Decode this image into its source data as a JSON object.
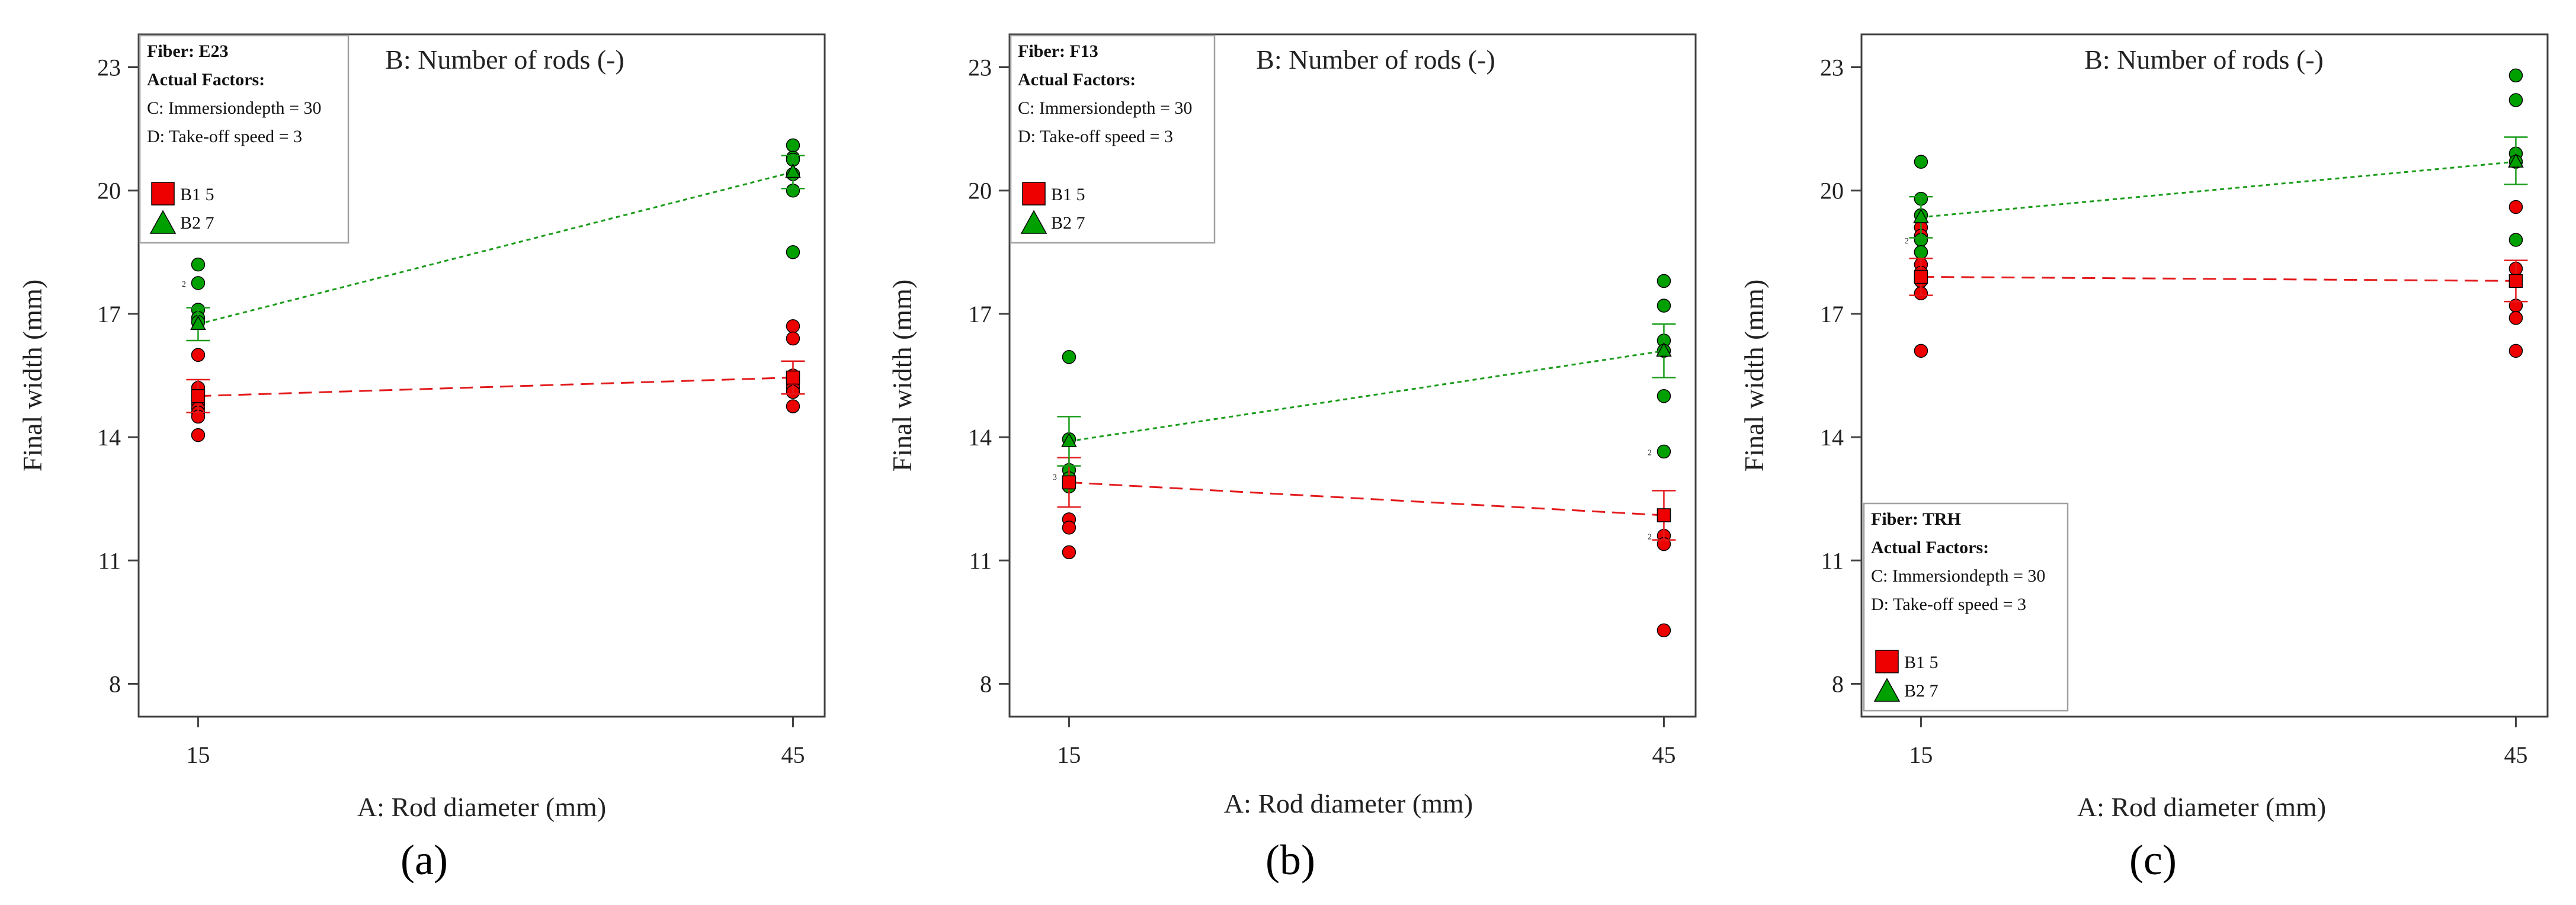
{
  "colors": {
    "b1": "#e31a1c",
    "b2": "#1a9c1a",
    "b1_marker": "#ee0000",
    "b2_marker": "#00a000"
  },
  "chart_data": [
    {
      "type": "scatter",
      "panel_label": "(a)",
      "title": "B: Number of rods (-)",
      "xlabel": "A: Rod diameter (mm)",
      "ylabel": "Final width (mm)",
      "x_ticks": [
        15,
        45
      ],
      "y_ticks": [
        8,
        11,
        14,
        17,
        20,
        23
      ],
      "xlim": [
        12,
        46.6
      ],
      "ylim": [
        7.2,
        23.8
      ],
      "legend": {
        "placement": "top-left",
        "fiber": "Fiber: E23",
        "actual_factors": "Actual Factors:",
        "factor_c": "C: Immersiondepth = 30",
        "factor_d": "D: Take-off speed = 3"
      },
      "series": [
        {
          "name": "B1 5",
          "marker": "square",
          "fit": [
            [
              15,
              15.0
            ],
            [
              45,
              15.45
            ]
          ],
          "ci": [
            [
              15,
              14.6,
              15.4
            ],
            [
              45,
              15.05,
              15.85
            ]
          ],
          "points_x": [
            15,
            15,
            15,
            15,
            15,
            15,
            15,
            15,
            45,
            45,
            45,
            45,
            45,
            45,
            45
          ],
          "points_y": [
            16.0,
            15.2,
            15.0,
            14.8,
            14.7,
            14.6,
            14.5,
            14.05,
            16.7,
            16.4,
            15.5,
            15.3,
            15.2,
            15.1,
            14.75
          ]
        },
        {
          "name": "B2 7",
          "marker": "triangle",
          "fit": [
            [
              15,
              16.75
            ],
            [
              45,
              20.45
            ]
          ],
          "ci": [
            [
              15,
              16.35,
              17.15
            ],
            [
              45,
              20.05,
              20.85
            ]
          ],
          "points_x": [
            15,
            15,
            15,
            15,
            15,
            45,
            45,
            45,
            45,
            45,
            45
          ],
          "points_y": [
            18.2,
            17.75,
            17.1,
            16.9,
            16.8,
            21.1,
            20.8,
            20.75,
            20.4,
            20.0,
            18.5
          ]
        }
      ],
      "annotations": [
        {
          "text": "2",
          "x": 15,
          "y": 17.75,
          "side": "left"
        }
      ]
    },
    {
      "type": "scatter",
      "panel_label": "(b)",
      "title": "B: Number of rods (-)",
      "xlabel": "A: Rod diameter (mm)",
      "ylabel": "Final width (mm)",
      "x_ticks": [
        15,
        45
      ],
      "y_ticks": [
        8,
        11,
        14,
        17,
        20,
        23
      ],
      "xlim": [
        12,
        46.6
      ],
      "ylim": [
        7.2,
        23.8
      ],
      "legend": {
        "placement": "top-left",
        "fiber": "Fiber: F13",
        "actual_factors": "Actual Factors:",
        "factor_c": "C: Immersiondepth = 30",
        "factor_d": "D: Take-off speed = 3"
      },
      "series": [
        {
          "name": "B1 5",
          "marker": "square",
          "fit": [
            [
              15,
              12.9
            ],
            [
              45,
              12.1
            ]
          ],
          "ci": [
            [
              15,
              12.3,
              13.5
            ],
            [
              45,
              11.5,
              12.7
            ]
          ],
          "points_x": [
            15,
            15,
            15,
            15,
            15,
            45,
            45,
            45,
            45,
            45
          ],
          "points_y": [
            13.0,
            12.9,
            12.0,
            11.8,
            11.2,
            12.1,
            11.6,
            11.4,
            9.3,
            12.1
          ]
        },
        {
          "name": "B2 7",
          "marker": "triangle",
          "fit": [
            [
              15,
              13.9
            ],
            [
              45,
              16.1
            ]
          ],
          "ci": [
            [
              15,
              13.3,
              14.5
            ],
            [
              45,
              15.45,
              16.75
            ]
          ],
          "points_x": [
            15,
            15,
            15,
            15,
            15,
            45,
            45,
            45,
            45,
            45,
            45
          ],
          "points_y": [
            15.95,
            13.95,
            13.2,
            13.0,
            12.8,
            17.8,
            17.2,
            16.35,
            15.0,
            13.65,
            16.1
          ]
        }
      ],
      "annotations": [
        {
          "text": "3",
          "x": 15,
          "y": 13.05,
          "side": "left"
        },
        {
          "text": "2",
          "x": 45,
          "y": 13.65,
          "side": "left"
        },
        {
          "text": "2",
          "x": 45,
          "y": 11.6,
          "side": "left"
        }
      ]
    },
    {
      "type": "scatter",
      "panel_label": "(c)",
      "title": "B: Number of rods (-)",
      "xlabel": "A: Rod diameter (mm)",
      "ylabel": "Final width (mm)",
      "x_ticks": [
        15,
        45
      ],
      "y_ticks": [
        8,
        11,
        14,
        17,
        20,
        23
      ],
      "xlim": [
        12,
        46.6
      ],
      "ylim": [
        7.2,
        23.8
      ],
      "legend": {
        "placement": "bottom-left",
        "fiber": "Fiber: TRH",
        "actual_factors": "Actual Factors:",
        "factor_c": "C: Immersiondepth = 30",
        "factor_d": "D: Take-off speed = 3"
      },
      "series": [
        {
          "name": "B1 5",
          "marker": "square",
          "fit": [
            [
              15,
              17.9
            ],
            [
              45,
              17.8
            ]
          ],
          "ci": [
            [
              15,
              17.45,
              18.35
            ],
            [
              45,
              17.3,
              18.3
            ]
          ],
          "points_x": [
            15,
            15,
            15,
            15,
            15,
            15,
            15,
            15,
            45,
            45,
            45,
            45,
            45,
            45
          ],
          "points_y": [
            19.1,
            18.9,
            18.5,
            18.2,
            18.0,
            17.8,
            17.5,
            16.1,
            19.6,
            18.1,
            17.8,
            17.2,
            16.9,
            16.1
          ]
        },
        {
          "name": "B2 7",
          "marker": "triangle",
          "fit": [
            [
              15,
              19.35
            ],
            [
              45,
              20.7
            ]
          ],
          "ci": [
            [
              15,
              18.85,
              19.85
            ],
            [
              45,
              20.15,
              21.3
            ]
          ],
          "points_x": [
            15,
            15,
            15,
            15,
            15,
            45,
            45,
            45,
            45,
            45
          ],
          "points_y": [
            20.7,
            19.8,
            19.4,
            18.8,
            18.5,
            22.8,
            22.2,
            20.9,
            20.7,
            18.8
          ]
        }
      ],
      "annotations": [
        {
          "text": "2",
          "x": 15,
          "y": 18.8,
          "side": "left"
        }
      ]
    }
  ]
}
